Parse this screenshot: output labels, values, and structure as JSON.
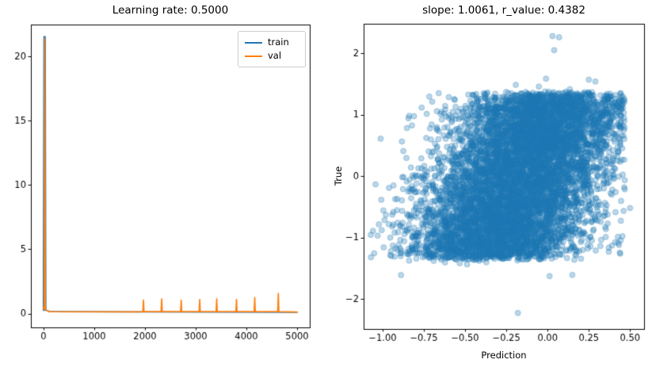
{
  "figure": {
    "background": "#ffffff",
    "text_color": "#000000",
    "spine_color": "#000000"
  },
  "chart_data": [
    {
      "type": "line",
      "title": "Learning rate: 0.5000",
      "xlabel": "",
      "ylabel": "",
      "xlim": [
        -250,
        5250
      ],
      "ylim": [
        -1.07,
        22.47
      ],
      "grid": false,
      "xticks": {
        "values": [
          0,
          1000,
          2000,
          3000,
          4000,
          5000
        ],
        "labels": [
          "0",
          "1000",
          "2000",
          "3000",
          "4000",
          "5000"
        ]
      },
      "yticks": {
        "values": [
          0,
          5,
          10,
          15,
          20
        ],
        "labels": [
          "0",
          "5",
          "10",
          "15",
          "20"
        ]
      },
      "legend": {
        "position": "upper right",
        "entries": [
          "train",
          "val"
        ]
      },
      "series": [
        {
          "name": "train",
          "color": "#1f77b4",
          "points": [
            [
              0,
              0.4
            ],
            [
              8,
              0.3
            ],
            [
              20,
              21.5
            ],
            [
              32,
              0.3
            ],
            [
              120,
              0.15
            ],
            [
              5000,
              0.1
            ]
          ]
        },
        {
          "name": "val",
          "color": "#ff7f0e",
          "points": [
            [
              0,
              0.5
            ],
            [
              12,
              0.3
            ],
            [
              21,
              21.4
            ],
            [
              34,
              0.3
            ],
            [
              120,
              0.16
            ],
            [
              1900,
              0.14
            ]
          ],
          "spikes": [
            {
              "x": 1970,
              "h": 0.9
            },
            {
              "x": 2330,
              "h": 1.0
            },
            {
              "x": 2715,
              "h": 0.9
            },
            {
              "x": 3080,
              "h": 0.95
            },
            {
              "x": 3415,
              "h": 1.0
            },
            {
              "x": 3805,
              "h": 0.95
            },
            {
              "x": 4165,
              "h": 1.1
            },
            {
              "x": 4630,
              "h": 1.42
            }
          ],
          "baseline": 0.15,
          "end": [
            5000,
            0.13
          ]
        }
      ]
    },
    {
      "type": "scatter",
      "title": "slope: 1.0061, r_value: 0.4382",
      "xlabel": "Prediction",
      "ylabel": "True",
      "xlim": [
        -1.115,
        0.585
      ],
      "ylim": [
        -2.49,
        2.48
      ],
      "grid": false,
      "xticks": {
        "values": [
          -1.0,
          -0.75,
          -0.5,
          -0.25,
          0,
          0.25,
          0.5
        ],
        "labels": [
          "−1.00",
          "−0.75",
          "−0.50",
          "−0.25",
          "0.00",
          "0.25",
          "0.50"
        ]
      },
      "yticks": {
        "values": [
          -2,
          -1,
          0,
          1,
          2
        ],
        "labels": [
          "−2",
          "−1",
          "0",
          "1",
          "2"
        ]
      },
      "marker": {
        "color": "#1f77b4",
        "alpha": 0.3,
        "radius": 3.5
      },
      "fit": {
        "slope": 1.0061,
        "r_value": 0.4382
      },
      "cloud": {
        "n": 8000,
        "seed": 7,
        "y_tanh_scale": 1.38,
        "y_inner_std": 0.8,
        "x_slope": 0.16,
        "x_intercept": -0.16,
        "x_noise_std": 0.26,
        "x_min": -1.08,
        "x_max": 0.47,
        "fringe_prob": 0.012,
        "fringe_scale": 0.3
      },
      "outliers": [
        [
          0.03,
          2.28
        ],
        [
          0.07,
          2.26
        ],
        [
          0.04,
          2.05
        ],
        [
          -0.18,
          -2.23
        ],
        [
          0.5,
          -0.52
        ],
        [
          -1.03,
          -0.97
        ],
        [
          0.25,
          1.57
        ],
        [
          0.29,
          1.54
        ],
        [
          -0.66,
          1.35
        ],
        [
          0.15,
          -1.61
        ]
      ]
    }
  ]
}
